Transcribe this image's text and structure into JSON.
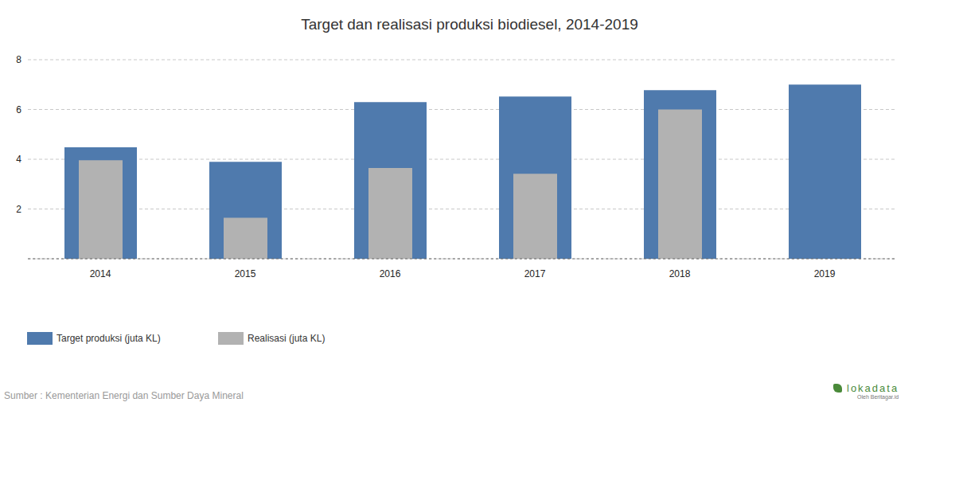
{
  "chart_data": {
    "type": "bar",
    "title": "Target dan realisasi produksi biodiesel, 2014-2019",
    "categories": [
      "2014",
      "2015",
      "2016",
      "2017",
      "2018",
      "2019"
    ],
    "series": [
      {
        "name": "Target produksi (juta KL)",
        "color": "#4f7aad",
        "values": [
          4.48,
          3.9,
          6.3,
          6.52,
          6.78,
          7.0
        ]
      },
      {
        "name": "Realisasi (juta KL)",
        "color": "#b2b2b2",
        "values": [
          3.96,
          1.65,
          3.65,
          3.42,
          6.0,
          null
        ]
      }
    ],
    "ylim": [
      0,
      8
    ],
    "yticks": [
      2,
      4,
      6,
      8
    ],
    "grid": true,
    "legend": "bottom-left",
    "source": "Sumber : Kementerian Energi dan Sumber Daya Mineral",
    "logo": "lokadata",
    "logo_subtitle": "Oleh Beritagar.id"
  }
}
